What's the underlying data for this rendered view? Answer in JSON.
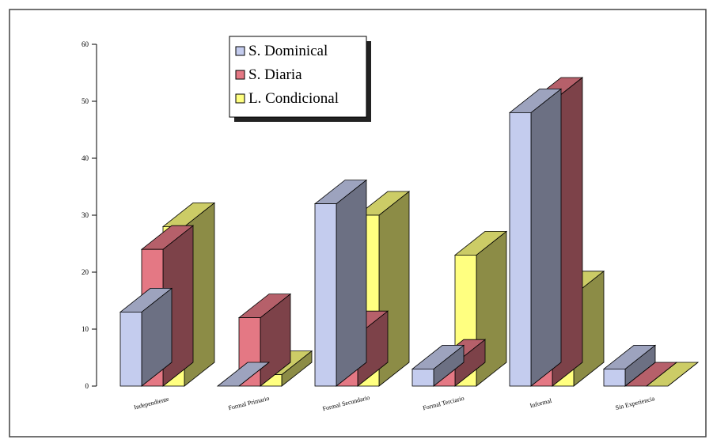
{
  "chart_data": {
    "type": "bar",
    "categories": [
      "Independiente",
      "Formal Primario",
      "Formal Secundario",
      "Formal Terciario",
      "Informal",
      "Sin Experiencia"
    ],
    "series": [
      {
        "name": "S. Dominical",
        "values": [
          13,
          0,
          32,
          3,
          48,
          3
        ],
        "color": "#c4ccee"
      },
      {
        "name": "S. Diaria",
        "values": [
          24,
          12,
          9,
          4,
          50,
          0
        ],
        "color": "#e47884"
      },
      {
        "name": "L. Condicional",
        "values": [
          28,
          2,
          30,
          23,
          16,
          0
        ],
        "color": "#ffff80"
      }
    ],
    "yticks": [
      "0",
      "10",
      "20",
      "30",
      "40",
      "50",
      "60"
    ],
    "ylim": [
      0,
      60
    ],
    "legend": "top-center"
  }
}
